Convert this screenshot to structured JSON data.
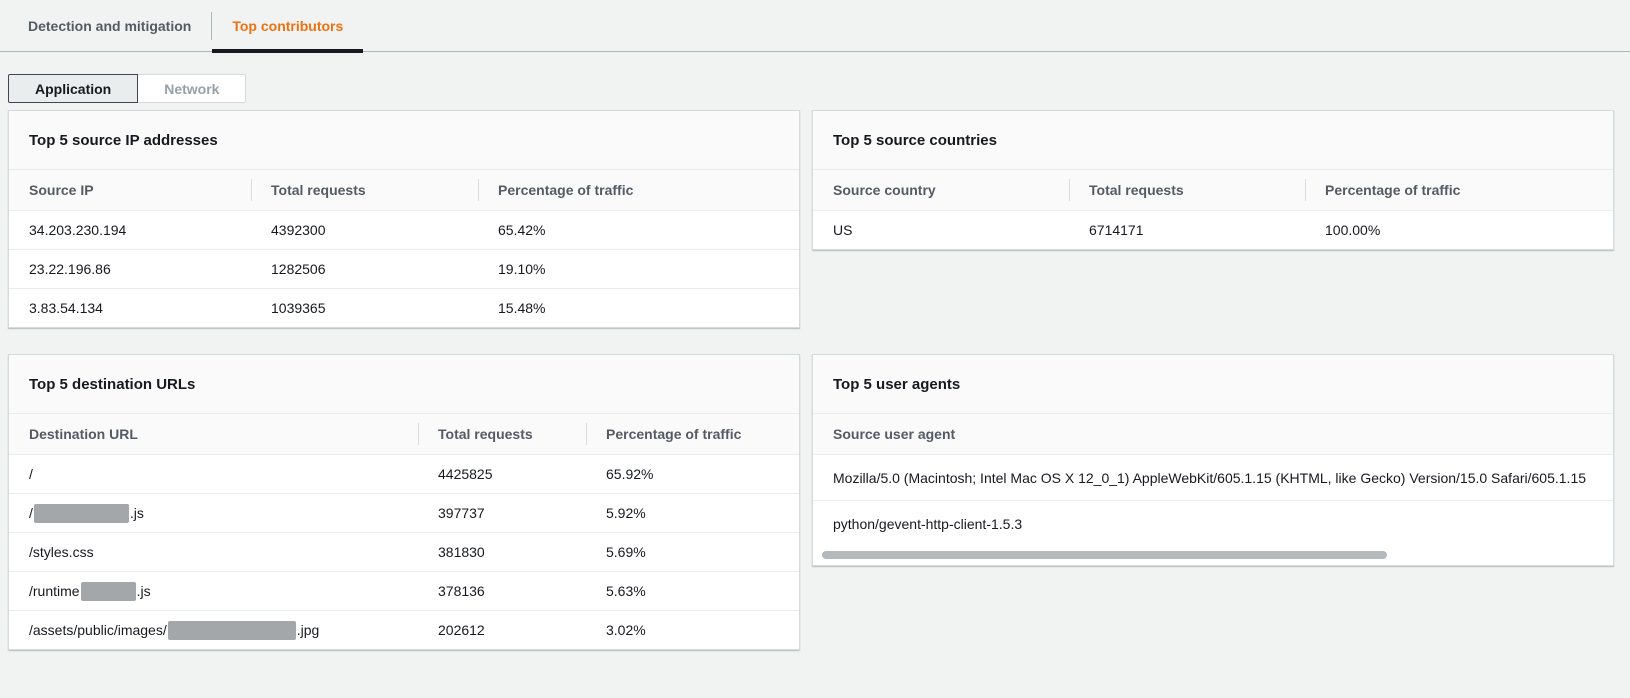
{
  "tabs": {
    "detection": "Detection and mitigation",
    "top_contributors": "Top contributors"
  },
  "view_toggle": {
    "application": "Application",
    "network": "Network"
  },
  "colors": {
    "accent_orange": "#ec7211",
    "active_tab_underline": "#16191f",
    "redaction_gray": "#a3a7a9",
    "panel_header_bg": "#fafafa"
  },
  "panels": [
    {
      "id": "source_ips",
      "title": "Top 5 source IP addresses",
      "columns": [
        "Source IP",
        "Total requests",
        "Percentage of traffic"
      ],
      "rows": [
        [
          "34.203.230.194",
          "4392300",
          "65.42%"
        ],
        [
          "23.22.196.86",
          "1282506",
          "19.10%"
        ],
        [
          "3.83.54.134",
          "1039365",
          "15.48%"
        ]
      ]
    },
    {
      "id": "source_countries",
      "title": "Top 5 source countries",
      "columns": [
        "Source country",
        "Total requests",
        "Percentage of traffic"
      ],
      "rows": [
        [
          "US",
          "6714171",
          "100.00%"
        ]
      ]
    },
    {
      "id": "destination_urls",
      "title": "Top 5 destination URLs",
      "columns": [
        "Destination URL",
        "Total requests",
        "Percentage of traffic"
      ],
      "rows": [
        [
          "/",
          "4425825",
          "65.92%"
        ],
        [
          [
            "/",
            {
              "redacted": 95
            },
            ".js"
          ],
          "397737",
          "5.92%"
        ],
        [
          "/styles.css",
          "381830",
          "5.69%"
        ],
        [
          [
            "/runtime",
            {
              "redacted": 55
            },
            ".js"
          ],
          "378136",
          "5.63%"
        ],
        [
          [
            "/assets/public/images/",
            {
              "redacted": 128
            },
            ".jpg"
          ],
          "202612",
          "3.02%"
        ]
      ]
    },
    {
      "id": "user_agents",
      "title": "Top 5 user agents",
      "columns": [
        "Source user agent"
      ],
      "rows": [
        [
          "Mozilla/5.0 (Macintosh; Intel Mac OS X 12_0_1) AppleWebKit/605.1.15 (KHTML, like Gecko) Version/15.0 Safari/605.1.15"
        ],
        [
          "python/gevent-http-client-1.5.3"
        ]
      ],
      "has_horizontal_scrollbar": true
    }
  ]
}
